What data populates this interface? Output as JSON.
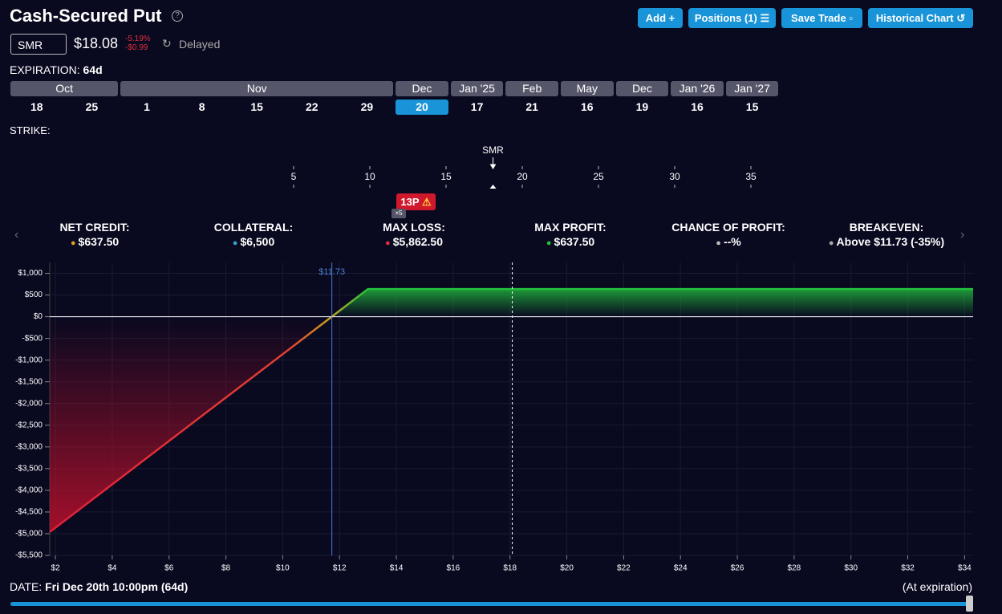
{
  "header": {
    "title": "Cash-Secured Put",
    "buttons": [
      "Add",
      "Positions (1)",
      "Save Trade",
      "Historical Chart"
    ]
  },
  "ticker": {
    "symbol": "SMR",
    "price": "$18.08",
    "change_pct": "-5.19%",
    "change": "-$0.99",
    "status": "Delayed"
  },
  "expiration": {
    "label": "EXPIRATION:",
    "value": "64d",
    "months": [
      {
        "name": "Oct",
        "days": [
          "18",
          "25"
        ]
      },
      {
        "name": "Nov",
        "days": [
          "1",
          "8",
          "15",
          "22",
          "29"
        ]
      },
      {
        "name": "Dec",
        "days": [
          "20"
        ],
        "selected": true
      },
      {
        "name": "Jan '25",
        "days": [
          "17"
        ]
      },
      {
        "name": "Feb",
        "days": [
          "21"
        ]
      },
      {
        "name": "May",
        "days": [
          "16"
        ]
      },
      {
        "name": "Dec",
        "days": [
          "19"
        ]
      },
      {
        "name": "Jan '26",
        "days": [
          "16"
        ]
      },
      {
        "name": "Jan '27",
        "days": [
          "15"
        ]
      }
    ]
  },
  "strike": {
    "label": "STRIKE:",
    "ticks": [
      5,
      10,
      15,
      20,
      25,
      30,
      35
    ],
    "price": 18.08,
    "price_label": "SMR",
    "strike": 13,
    "strike_label": "13P",
    "quantity": "×5"
  },
  "stats": [
    {
      "label": "NET CREDIT:",
      "value": "$637.50"
    },
    {
      "label": "COLLATERAL:",
      "value": "$6,500"
    },
    {
      "label": "MAX LOSS:",
      "value": "$5,862.50"
    },
    {
      "label": "MAX PROFIT:",
      "value": "$637.50"
    },
    {
      "label": "CHANCE OF PROFIT:",
      "value": "--%"
    },
    {
      "label": "BREAKEVEN:",
      "value": "Above $11.73 (-35%)"
    }
  ],
  "chart_data": {
    "type": "line",
    "x": [
      1.8,
      13,
      34.3
    ],
    "series": [
      {
        "name": "P/L",
        "color": "#22c03a",
        "values": [
          -4962.5,
          637.5,
          637.5
        ]
      }
    ],
    "xlim": [
      1.8,
      34.3
    ],
    "xticks": [
      {
        "value": 2,
        "label": "$2"
      },
      {
        "value": 4,
        "label": "$4"
      },
      {
        "value": 6,
        "label": "$6"
      },
      {
        "value": 8,
        "label": "$8"
      },
      {
        "value": 10,
        "label": "$10"
      },
      {
        "value": 12,
        "label": "$12"
      },
      {
        "value": 14,
        "label": "$14"
      },
      {
        "value": 16,
        "label": "$16"
      },
      {
        "value": 18,
        "label": "$18"
      },
      {
        "value": 20,
        "label": "$20"
      },
      {
        "value": 22,
        "label": "$22"
      },
      {
        "value": 24,
        "label": "$24"
      },
      {
        "value": 26,
        "label": "$26"
      },
      {
        "value": 28,
        "label": "$28"
      },
      {
        "value": 30,
        "label": "$30"
      },
      {
        "value": 32,
        "label": "$32"
      },
      {
        "value": 34,
        "label": "$34"
      }
    ],
    "ylim": [
      -5500,
      1250
    ],
    "yticks": [
      {
        "value": 1000,
        "label": "$1,000"
      },
      {
        "value": 500,
        "label": "$500"
      },
      {
        "value": 0,
        "label": "$0"
      },
      {
        "value": -500,
        "label": "-$500"
      },
      {
        "value": -1000,
        "label": "-$1,000"
      },
      {
        "value": -1500,
        "label": "-$1,500"
      },
      {
        "value": -2000,
        "label": "-$2,000"
      },
      {
        "value": -2500,
        "label": "-$2,500"
      },
      {
        "value": -3000,
        "label": "-$3,000"
      },
      {
        "value": -3500,
        "label": "-$3,500"
      },
      {
        "value": -4000,
        "label": "-$4,000"
      },
      {
        "value": -4500,
        "label": "-$4,500"
      },
      {
        "value": -5000,
        "label": "-$5,000"
      },
      {
        "value": -5500,
        "label": "-$5,500"
      }
    ],
    "grid": true,
    "vlines": [
      {
        "x": 11.73,
        "label": "$11.73",
        "color": "#4a7fd0",
        "style": "solid"
      },
      {
        "x": 18.08,
        "color": "#ffffff",
        "style": "dashed"
      }
    ]
  },
  "footer": {
    "label": "DATE:",
    "value": "Fri Dec 20th 10:00pm (64d)",
    "note": "(At expiration)"
  }
}
